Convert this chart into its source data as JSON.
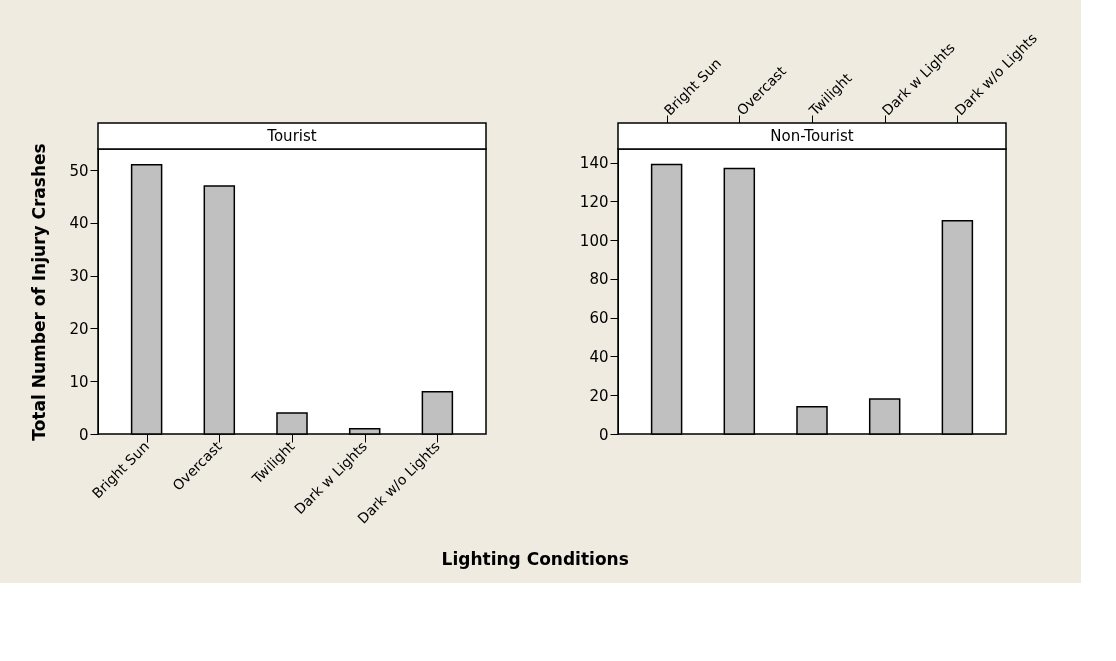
{
  "chart_data": [
    {
      "type": "bar",
      "title": "Tourist",
      "xlabel": "Lighting Conditions",
      "ylabel": "Total Number of Injury Crashes",
      "categories": [
        "Bright Sun",
        "Overcast",
        "Twilight",
        "Dark w Lights",
        "Dark w/o Lights"
      ],
      "values": [
        51,
        47,
        4,
        1,
        8
      ],
      "color": "#c0c0c0",
      "ylim": [
        0,
        54
      ],
      "yticks": [
        0,
        10,
        20,
        30,
        40,
        50
      ],
      "grid": false
    },
    {
      "type": "bar",
      "title": "Non-Tourist",
      "categories": [
        "Bright Sun",
        "Overcast",
        "Twilight",
        "Dark w Lights",
        "Dark w/o Lights"
      ],
      "values": [
        139,
        137,
        14,
        18,
        110
      ],
      "color": "#c0c0c0",
      "ylim": [
        0,
        147
      ],
      "yticks": [
        0,
        20,
        40,
        60,
        80,
        100,
        120,
        140
      ],
      "grid": false
    }
  ]
}
